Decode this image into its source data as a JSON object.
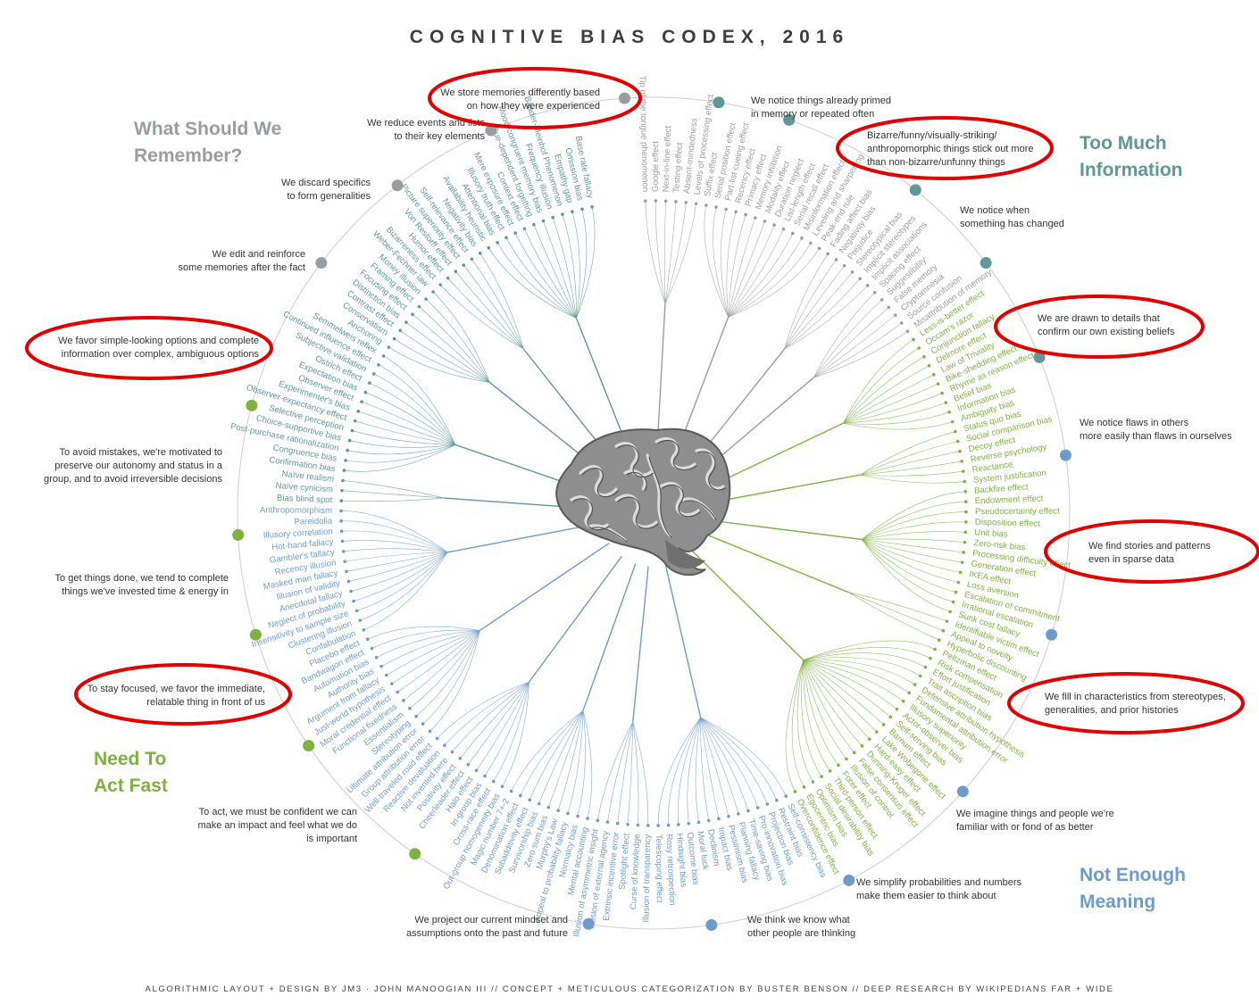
{
  "title": "COGNITIVE BIAS CODEX, 2016",
  "footer": "ALGORITHMIC LAYOUT + DESIGN BY JM3 · JOHN MANOOGIAN III // CONCEPT + METICULOUS CATEGORIZATION BY BUSTER BENSON // DEEP RESEARCH BY WIKIPEDIANS FAR + WIDE",
  "colors": {
    "remember": "#9a9d9f",
    "info": "#5f979a",
    "fast": "#7db241",
    "meaning": "#6e9bcc",
    "highlight": "#e00000",
    "ring": "#cccccc"
  },
  "quadrants": {
    "remember": [
      "What Should We",
      "Remember?"
    ],
    "info": [
      "Too Much",
      "Information"
    ],
    "fast": [
      "Need To",
      "Act Fast"
    ],
    "meaning": [
      "Not Enough",
      "Meaning"
    ]
  },
  "center_icon": "brain-icon",
  "categories": [
    {
      "lines": [
        "We store memories differently based",
        "on how they were experienced"
      ],
      "color": "remember",
      "highlighted": true,
      "biases": [
        "Tip of the tongue phenomenon",
        "Google effect",
        "Next-in-line effect",
        "Testing effect",
        "Absent-mindedness",
        "Levels of processing effect"
      ]
    },
    {
      "lines": [
        "We reduce events and lists",
        "to their key elements"
      ],
      "color": "remember",
      "highlighted": false,
      "biases": [
        "Suffix effect",
        "Serial position effect",
        "Part-list cueing effect",
        "Recency effect",
        "Primacy effect",
        "Memory inhibition",
        "Modality effect",
        "Duration neglect",
        "List-length effect",
        "Serial recall effect",
        "Misinformation effect",
        "Leveling and sharpening",
        "Peak-end rule"
      ]
    },
    {
      "lines": [
        "We discard specifics",
        "to form generalities"
      ],
      "color": "remember",
      "highlighted": false,
      "biases": [
        "Fading affect bias",
        "Negativity bias",
        "Prejudice",
        "Stereotypical bias",
        "Implicit stereotypes",
        "Implicit associations"
      ]
    },
    {
      "lines": [
        "We edit and reinforce",
        "some memories after the fact"
      ],
      "color": "remember",
      "highlighted": false,
      "biases": [
        "Spacing effect",
        "Suggestibility",
        "False memory",
        "Cryptomnesia",
        "Source confusion",
        "Misattribution of memory"
      ]
    },
    {
      "lines": [
        "We favor simple-looking options and complete",
        "information over complex, ambiguous options"
      ],
      "color": "fast",
      "highlighted": true,
      "biases": [
        "Less-is-better effect",
        "Occam's razor",
        "Conjunction fallacy",
        "Delmore effect",
        "Law of Triviality",
        "Bike-shedding effect",
        "Rhyme as reason effect",
        "Belief bias",
        "Information bias",
        "Ambiguity bias"
      ]
    },
    {
      "lines": [
        "To avoid mistakes, we're motivated to",
        "preserve our autonomy and status in a",
        "group, and to avoid irreversible decisions"
      ],
      "color": "fast",
      "highlighted": false,
      "biases": [
        "Status quo bias",
        "Social comparison bias",
        "Decoy effect",
        "Reverse psychology",
        "Reactance",
        "System justification"
      ]
    },
    {
      "lines": [
        "To get things done, we tend to complete",
        "things we've invested time & energy in"
      ],
      "color": "fast",
      "highlighted": false,
      "biases": [
        "Backfire effect",
        "Endowment effect",
        "Pseudocertainty effect",
        "Disposition effect",
        "Unit bias",
        "Zero-risk bias",
        "Processing difficulty effect",
        "Generation effect",
        "IKEA effect",
        "Loss aversion",
        "Escalation of commitment",
        "Irrational escalation",
        "Sunk cost fallacy"
      ]
    },
    {
      "lines": [
        "To stay focused, we favor the immediate,",
        "relatable thing in front of us"
      ],
      "color": "fast",
      "highlighted": true,
      "biases": [
        "Identifiable victim effect",
        "Appeal to novelty",
        "Hyperbolic discounting"
      ]
    },
    {
      "lines": [
        "To act, we must be confident we can",
        "make an impact and feel what we do",
        "is important"
      ],
      "color": "fast",
      "highlighted": false,
      "biases": [
        "Peltzman effect",
        "Risk compensation",
        "Effort justification",
        "Trait ascription bias",
        "Defensive attribution hypothesis",
        "Fundamental attribution error",
        "Illusory superiority",
        "Actor-observer bias",
        "Self-serving bias",
        "Barnum effect",
        "Lake Wobegone effect",
        "Hard-easy effect",
        "Dunning-Kruger effect",
        "False consensus effect",
        "Illusion of control",
        "Forer effect",
        "Third-person effect",
        "Social desirability bias",
        "Optimism bias",
        "Egocentric bias",
        "Overconfidence effect"
      ]
    },
    {
      "lines": [
        "We project our current mindset and",
        "assumptions onto the past and future"
      ],
      "color": "meaning",
      "highlighted": false,
      "biases": [
        "Self-consistency bias",
        "Restraint bias",
        "Projection bias",
        "Pro-innovation bias",
        "Time-saving bias",
        "Planning fallacy",
        "Pessimism bias",
        "Impact bias",
        "Declinism",
        "Moral luck",
        "Outcome bias",
        "Hindsight bias",
        "Rosy retrospection",
        "Telescoping effect"
      ]
    },
    {
      "lines": [
        "We think we know what",
        "other people are thinking"
      ],
      "color": "meaning",
      "highlighted": false,
      "biases": [
        "Illusion of transparency",
        "Curse of knowledge",
        "Spotlight effect",
        "Extrinsic incentive error",
        "Illusion of external agency",
        "Illusion of asymmetric insight"
      ]
    },
    {
      "lines": [
        "We simplify probabilities and numbers",
        "make them easier to think about"
      ],
      "color": "meaning",
      "highlighted": false,
      "biases": [
        "Mental accounting",
        "Normalcy bias",
        "Appeal to probability fallacy",
        "Murphy's Law",
        "Zero sum bias",
        "Survivorship bias",
        "Subadditivity effect",
        "Denomination effect",
        "Magic number 7+-2"
      ]
    },
    {
      "lines": [
        "We imagine things and people we're",
        "familiar with or fond of as better"
      ],
      "color": "meaning",
      "highlighted": false,
      "biases": [
        "Out-group homogeneity bias",
        "Cross-race effect",
        "In-group bias",
        "Halo effect",
        "Cheerleader effect",
        "Positivity effect",
        "Not invented here",
        "Reactive devaluation",
        "Well-traveled road effect"
      ]
    },
    {
      "lines": [
        "We fill in characteristics from stereotypes,",
        "generalities, and prior histories"
      ],
      "color": "meaning",
      "highlighted": true,
      "biases": [
        "Group attribution error",
        "Ultimate attribution error",
        "Stereotyping",
        "Essentialism",
        "Functional fixedness",
        "Moral credential effect",
        "Just-world hypothesis",
        "Argument from fallacy",
        "Authority bias",
        "Automation bias",
        "Bandwagon effect",
        "Placebo effect"
      ]
    },
    {
      "lines": [
        "We find stories and patterns",
        "even in sparse data"
      ],
      "color": "meaning",
      "highlighted": true,
      "biases": [
        "Confabulation",
        "Clustering illusion",
        "Insensitivity to sample size",
        "Neglect of probability",
        "Anecdotal fallacy",
        "Illusion of validity",
        "Masked man fallacy",
        "Recency illusion",
        "Gambler's fallacy",
        "Hot-hand fallacy",
        "Illusory correlation",
        "Pareidolia",
        "Anthropomorphism"
      ]
    },
    {
      "lines": [
        "We notice flaws in others",
        "more easily than flaws in ourselves"
      ],
      "color": "info",
      "highlighted": false,
      "biases": [
        "Bias blind spot",
        "Naïve cynicism",
        "Naïve realism"
      ]
    },
    {
      "lines": [
        "We are drawn to details that",
        "confirm our own existing beliefs"
      ],
      "color": "info",
      "highlighted": true,
      "biases": [
        "Confirmation bias",
        "Congruence bias",
        "Post-purchase rationalization",
        "Choice-supportive bias",
        "Selective perception",
        "Observer-expectancy effect",
        "Experimenter's bias",
        "Observer effect",
        "Expectation bias",
        "Ostrich effect",
        "Subjective validation",
        "Continued influence effect",
        "Semmelweis reflex"
      ]
    },
    {
      "lines": [
        "We notice when",
        "something has changed"
      ],
      "color": "info",
      "highlighted": false,
      "biases": [
        "Anchoring",
        "Conservatism",
        "Contrast effect",
        "Distinction bias",
        "Focusing effect",
        "Framing effect",
        "Money illusion",
        "Weber-Fechner law"
      ]
    },
    {
      "lines": [
        "Bizarre/funny/visually-striking/",
        "anthropomorphic things stick out more",
        "than non-bizarre/unfunny things"
      ],
      "color": "info",
      "highlighted": true,
      "biases": [
        "Bizarreness effect",
        "Humor effect",
        "Von Restorff effect",
        "Picture superiority effect",
        "Self-relevance effect",
        "Negativity bias"
      ]
    },
    {
      "lines": [
        "We notice things already primed",
        "in memory or repeated often"
      ],
      "color": "info",
      "highlighted": false,
      "biases": [
        "Availability heuristic",
        "Attentional bias",
        "Illusory truth effect",
        "Mere exposure effect",
        "Context effect",
        "Cue-dependent forgetting",
        "Mood-congruent memory bias",
        "Frequency illusion",
        "Baader-Meinhof Phenomenon",
        "Empathy gap",
        "Omission bias",
        "Base rate fallacy"
      ]
    }
  ]
}
